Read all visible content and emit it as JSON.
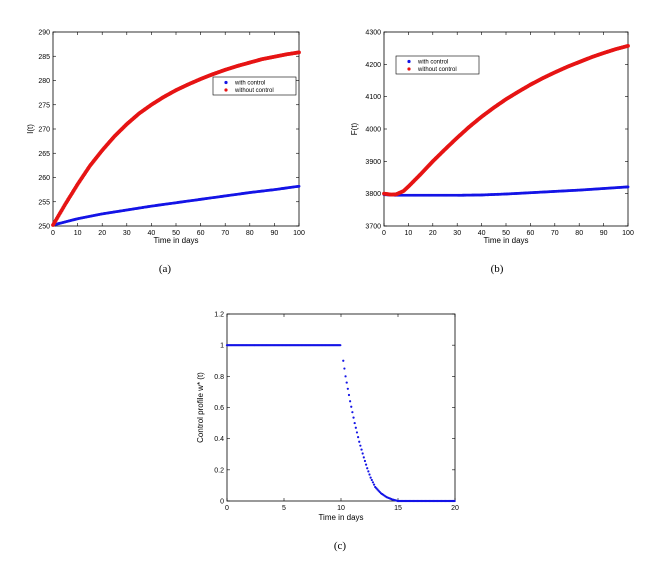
{
  "colors": {
    "with_control": "#1414e6",
    "without_control": "#e61414"
  },
  "chart_data": [
    {
      "type": "scatter",
      "panel": "a",
      "caption": "(a)",
      "xlabel": "Time in days",
      "ylabel": "I(t)",
      "xlim": [
        0,
        100
      ],
      "ylim": [
        250,
        290
      ],
      "xticks": [
        0,
        10,
        20,
        30,
        40,
        50,
        60,
        70,
        80,
        90,
        100
      ],
      "yticks": [
        250,
        255,
        260,
        265,
        270,
        275,
        280,
        285,
        290
      ],
      "legend_position": "top-right",
      "series": [
        {
          "name": "with control",
          "color": "#1414e6",
          "x": [
            0,
            10,
            20,
            30,
            40,
            50,
            60,
            70,
            80,
            90,
            100
          ],
          "y": [
            250.2,
            251.5,
            252.5,
            253.3,
            254.1,
            254.8,
            255.5,
            256.2,
            256.9,
            257.5,
            258.2
          ]
        },
        {
          "name": "without control",
          "color": "#e61414",
          "x": [
            0,
            5,
            10,
            15,
            20,
            25,
            30,
            35,
            40,
            45,
            50,
            55,
            60,
            65,
            70,
            75,
            80,
            85,
            90,
            95,
            100
          ],
          "y": [
            250.2,
            254.5,
            258.6,
            262.4,
            265.6,
            268.5,
            271.0,
            273.2,
            275.0,
            276.6,
            278.0,
            279.2,
            280.3,
            281.3,
            282.2,
            283.0,
            283.7,
            284.4,
            284.9,
            285.4,
            285.8
          ]
        }
      ]
    },
    {
      "type": "scatter",
      "panel": "b",
      "caption": "(b)",
      "xlabel": "Time in days",
      "ylabel": "F(t)",
      "xlim": [
        0,
        100
      ],
      "ylim": [
        3700,
        4300
      ],
      "xticks": [
        0,
        10,
        20,
        30,
        40,
        50,
        60,
        70,
        80,
        90,
        100
      ],
      "yticks": [
        3700,
        3800,
        3900,
        4000,
        4100,
        4200,
        4300
      ],
      "legend_position": "top-left",
      "series": [
        {
          "name": "with control",
          "color": "#1414e6",
          "x": [
            0,
            5,
            10,
            20,
            30,
            40,
            50,
            60,
            70,
            80,
            90,
            100
          ],
          "y": [
            3797,
            3795,
            3795,
            3795,
            3795,
            3796,
            3799,
            3803,
            3807,
            3811,
            3816,
            3821
          ]
        },
        {
          "name": "without control",
          "color": "#e61414",
          "x": [
            0,
            3,
            5,
            8,
            10,
            15,
            20,
            25,
            30,
            35,
            40,
            45,
            50,
            55,
            60,
            65,
            70,
            75,
            80,
            85,
            90,
            95,
            100
          ],
          "y": [
            3800,
            3797,
            3798,
            3808,
            3822,
            3860,
            3900,
            3937,
            3973,
            4007,
            4038,
            4066,
            4092,
            4115,
            4137,
            4157,
            4175,
            4192,
            4207,
            4222,
            4235,
            4247,
            4257
          ]
        }
      ]
    },
    {
      "type": "scatter",
      "panel": "c",
      "caption": "(c)",
      "xlabel": "Time in days",
      "ylabel": "Control profile w* (t)",
      "xlim": [
        0,
        20
      ],
      "ylim": [
        0,
        1.2
      ],
      "xticks": [
        0,
        5,
        10,
        15,
        20
      ],
      "yticks": [
        0,
        0.2,
        0.4,
        0.6,
        0.8,
        1,
        1.2
      ],
      "series": [
        {
          "name": "",
          "color": "#1414e6",
          "x": [
            0,
            10,
            10.2,
            10.4,
            10.6,
            10.8,
            11,
            11.2,
            11.4,
            11.6,
            11.8,
            12,
            12.3,
            12.6,
            13,
            13.5,
            14,
            14.5,
            15,
            20
          ],
          "y": [
            1,
            1,
            0.9,
            0.8,
            0.72,
            0.64,
            0.57,
            0.5,
            0.44,
            0.38,
            0.33,
            0.28,
            0.21,
            0.15,
            0.09,
            0.05,
            0.025,
            0.01,
            0,
            0
          ]
        }
      ]
    }
  ]
}
